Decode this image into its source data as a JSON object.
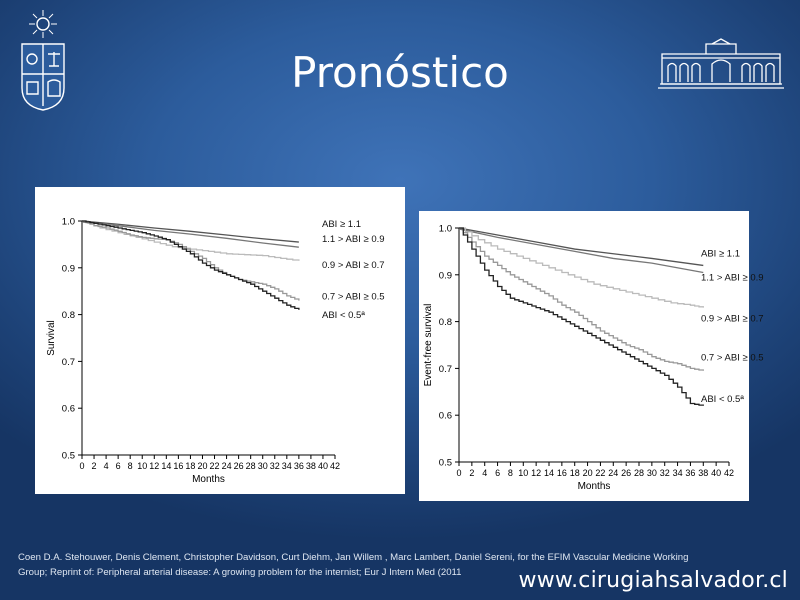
{
  "slide": {
    "title": "Pronóstico",
    "citation_line1": "Coen D.A. Stehouwer, Denis Clement, Christopher Davidson,  Curt Diehm, Jan Willem , Marc Lambert,  Daniel Sereni, for the EFIM Vascular Medicine Working",
    "citation_line2": "Group; Reprint of: Peripheral arterial disease: A growing problem for the internist; Eur J Intern Med (2011",
    "website": "www.cirugiahsalvador.cl"
  },
  "chart_data": [
    {
      "type": "line",
      "title": "",
      "xlabel": "Months",
      "ylabel": "Survival",
      "xlim": [
        0,
        42
      ],
      "ylim": [
        0.5,
        1.0
      ],
      "xticks": [
        0,
        2,
        4,
        6,
        8,
        10,
        12,
        14,
        16,
        18,
        20,
        22,
        24,
        26,
        28,
        30,
        32,
        34,
        36,
        38,
        40,
        42
      ],
      "yticks": [
        "0.5",
        "0.6",
        "0.7",
        "0.8",
        "0.9",
        "1.0"
      ],
      "grid": false,
      "legend": "inline-right",
      "series": [
        {
          "name": "ABI ≥ 1.1",
          "color": "#555555",
          "step": false,
          "x": [
            0,
            6,
            12,
            18,
            24,
            30,
            36
          ],
          "y": [
            1.0,
            0.993,
            0.985,
            0.978,
            0.97,
            0.962,
            0.955
          ]
        },
        {
          "name": "1.1 > ABI ≥ 0.9",
          "color": "#777777",
          "step": false,
          "x": [
            0,
            6,
            12,
            18,
            24,
            30,
            36
          ],
          "y": [
            0.998,
            0.99,
            0.98,
            0.972,
            0.963,
            0.953,
            0.944
          ]
        },
        {
          "name": "0.9 > ABI ≥ 0.7",
          "color": "#bbbbbb",
          "step": true,
          "x": [
            0,
            3,
            6,
            9,
            12,
            15,
            18,
            21,
            24,
            27,
            30,
            33,
            36
          ],
          "y": [
            1.0,
            0.985,
            0.975,
            0.965,
            0.955,
            0.945,
            0.94,
            0.935,
            0.93,
            0.928,
            0.926,
            0.92,
            0.915
          ]
        },
        {
          "name": "0.7 > ABI ≥ 0.5",
          "color": "#999999",
          "step": true,
          "x": [
            0,
            2,
            4,
            6,
            8,
            10,
            12,
            14,
            16,
            18,
            20,
            22,
            24,
            26,
            28,
            30,
            32,
            34,
            36
          ],
          "y": [
            1.0,
            0.99,
            0.985,
            0.978,
            0.97,
            0.965,
            0.962,
            0.96,
            0.95,
            0.935,
            0.92,
            0.9,
            0.885,
            0.875,
            0.87,
            0.865,
            0.855,
            0.84,
            0.83
          ]
        },
        {
          "name": "ABI < 0.5ª",
          "color": "#222222",
          "step": true,
          "x": [
            0,
            2,
            4,
            6,
            8,
            10,
            12,
            14,
            16,
            18,
            20,
            22,
            24,
            26,
            28,
            30,
            32,
            34,
            36
          ],
          "y": [
            1.0,
            0.995,
            0.99,
            0.985,
            0.98,
            0.975,
            0.968,
            0.96,
            0.945,
            0.93,
            0.91,
            0.895,
            0.885,
            0.875,
            0.865,
            0.85,
            0.835,
            0.82,
            0.81
          ]
        }
      ]
    },
    {
      "type": "line",
      "title": "",
      "xlabel": "Months",
      "ylabel": "Event-free survival",
      "xlim": [
        0,
        42
      ],
      "ylim": [
        0.5,
        1.0
      ],
      "xticks": [
        0,
        2,
        4,
        6,
        8,
        10,
        12,
        14,
        16,
        18,
        20,
        22,
        24,
        26,
        28,
        30,
        32,
        34,
        36,
        38,
        40,
        42
      ],
      "yticks": [
        "0.5",
        "0.6",
        "0.7",
        "0.8",
        "0.9",
        "1.0"
      ],
      "grid": false,
      "legend": "inline-right",
      "series": [
        {
          "name": "ABI ≥ 1.1",
          "color": "#555555",
          "step": false,
          "x": [
            0,
            6,
            12,
            18,
            24,
            30,
            38
          ],
          "y": [
            1.0,
            0.985,
            0.97,
            0.955,
            0.945,
            0.935,
            0.92
          ]
        },
        {
          "name": "1.1 > ABI ≥ 0.9",
          "color": "#777777",
          "step": false,
          "x": [
            0,
            6,
            12,
            18,
            24,
            30,
            38
          ],
          "y": [
            0.998,
            0.98,
            0.965,
            0.95,
            0.935,
            0.925,
            0.905
          ]
        },
        {
          "name": "0.9 > ABI ≥ 0.7",
          "color": "#bbbbbb",
          "step": true,
          "x": [
            0,
            3,
            6,
            9,
            12,
            15,
            18,
            21,
            24,
            27,
            30,
            33,
            36,
            38
          ],
          "y": [
            1.0,
            0.975,
            0.955,
            0.94,
            0.925,
            0.91,
            0.895,
            0.88,
            0.87,
            0.86,
            0.85,
            0.84,
            0.835,
            0.83
          ]
        },
        {
          "name": "0.7 > ABI ≥ 0.5",
          "color": "#999999",
          "step": true,
          "x": [
            0,
            2,
            4,
            6,
            8,
            10,
            12,
            14,
            16,
            18,
            20,
            22,
            24,
            26,
            28,
            30,
            32,
            34,
            36,
            38
          ],
          "y": [
            1.0,
            0.97,
            0.94,
            0.92,
            0.9,
            0.885,
            0.87,
            0.855,
            0.835,
            0.82,
            0.8,
            0.78,
            0.765,
            0.75,
            0.74,
            0.725,
            0.715,
            0.71,
            0.7,
            0.695
          ]
        },
        {
          "name": "ABI < 0.5ª",
          "color": "#222222",
          "step": true,
          "x": [
            0,
            2,
            4,
            6,
            8,
            10,
            12,
            14,
            16,
            18,
            20,
            22,
            24,
            26,
            28,
            30,
            32,
            34,
            36,
            38
          ],
          "y": [
            1.0,
            0.955,
            0.91,
            0.875,
            0.85,
            0.84,
            0.83,
            0.82,
            0.805,
            0.79,
            0.775,
            0.76,
            0.745,
            0.73,
            0.715,
            0.7,
            0.685,
            0.66,
            0.625,
            0.62
          ]
        }
      ]
    }
  ]
}
